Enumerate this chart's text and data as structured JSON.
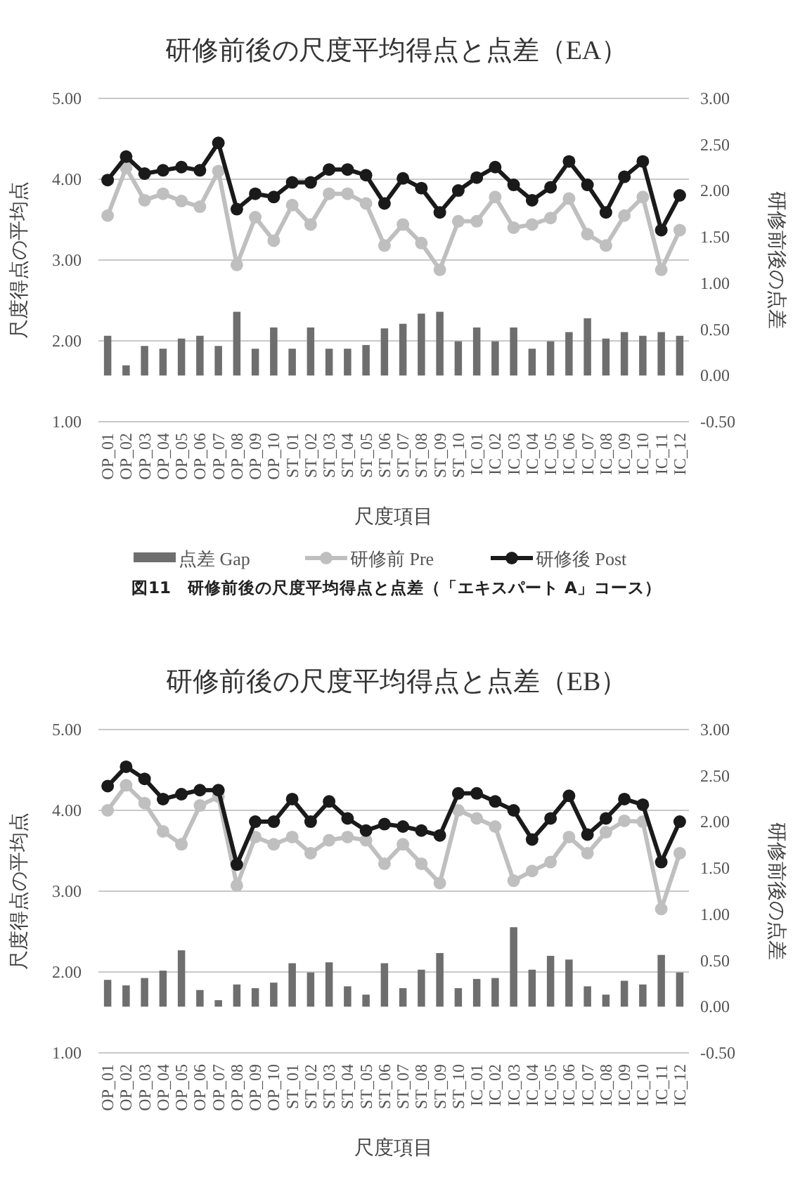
{
  "chart_data": [
    {
      "type": "line",
      "title": "研修前後の尺度平均得点と点差（EA）",
      "xlabel": "尺度項目",
      "ylabel": "尺度得点の平均点",
      "y2label": "研修前後の点差",
      "categories": [
        "OP_01",
        "OP_02",
        "OP_03",
        "OP_04",
        "OP_05",
        "OP_06",
        "OP_07",
        "OP_08",
        "OP_09",
        "OP_10",
        "ST_01",
        "ST_02",
        "ST_03",
        "ST_04",
        "ST_05",
        "ST_06",
        "ST_07",
        "ST_08",
        "ST_09",
        "ST_10",
        "IC_01",
        "IC_02",
        "IC_03",
        "IC_04",
        "IC_05",
        "IC_06",
        "IC_07",
        "IC_08",
        "IC_09",
        "IC_10",
        "IC_11",
        "IC_12"
      ],
      "series": [
        {
          "name": "点差 Gap",
          "type": "bar",
          "axis": "y2",
          "color": "#6e6e6e",
          "values": [
            0.43,
            0.11,
            0.32,
            0.29,
            0.4,
            0.43,
            0.32,
            0.69,
            0.29,
            0.52,
            0.29,
            0.52,
            0.29,
            0.29,
            0.33,
            0.51,
            0.56,
            0.67,
            0.69,
            0.37,
            0.52,
            0.37,
            0.52,
            0.29,
            0.37,
            0.47,
            0.62,
            0.4,
            0.47,
            0.43,
            0.47,
            0.43
          ]
        },
        {
          "name": "研修前 Pre",
          "color": "#bfbfbf",
          "values": [
            3.55,
            4.14,
            3.74,
            3.82,
            3.73,
            3.66,
            4.1,
            2.94,
            3.53,
            3.24,
            3.68,
            3.44,
            3.82,
            3.82,
            3.7,
            3.18,
            3.44,
            3.21,
            2.88,
            3.48,
            3.48,
            3.78,
            3.4,
            3.44,
            3.52,
            3.76,
            3.32,
            3.18,
            3.55,
            3.78,
            2.88,
            3.37
          ]
        },
        {
          "name": "研修後 Post",
          "color": "#1a1a1a",
          "values": [
            3.99,
            4.28,
            4.07,
            4.11,
            4.15,
            4.11,
            4.45,
            3.63,
            3.82,
            3.78,
            3.96,
            3.96,
            4.12,
            4.12,
            4.05,
            3.7,
            4.01,
            3.89,
            3.59,
            3.86,
            4.02,
            4.15,
            3.93,
            3.74,
            3.9,
            4.22,
            3.93,
            3.59,
            4.03,
            4.22,
            3.37,
            3.8
          ]
        }
      ],
      "ylim": [
        1,
        5
      ],
      "yticks": [
        {
          "value": 1,
          "label": "1.00"
        },
        {
          "value": 2,
          "label": "2.00"
        },
        {
          "value": 3,
          "label": "3.00"
        },
        {
          "value": 4,
          "label": "4.00"
        },
        {
          "value": 5,
          "label": "5.00"
        }
      ],
      "y2lim": [
        -0.5,
        3
      ],
      "y2ticks": [
        {
          "value": -0.5,
          "label": "-0.50"
        },
        {
          "value": 0,
          "label": "0.00"
        },
        {
          "value": 0.5,
          "label": "0.50"
        },
        {
          "value": 1,
          "label": "1.00"
        },
        {
          "value": 1.5,
          "label": "1.50"
        },
        {
          "value": 2,
          "label": "2.00"
        },
        {
          "value": 2.5,
          "label": "2.50"
        },
        {
          "value": 3,
          "label": "3.00"
        }
      ],
      "grid": "y",
      "legend": "bottom",
      "marker": "circle",
      "line_style": "solid",
      "annotations": [
        "図11　研修前後の尺度平均得点と点差（「エキスパート A」コース）"
      ]
    },
    {
      "type": "line",
      "title": "研修前後の尺度平均得点と点差（EB）",
      "xlabel": "尺度項目",
      "ylabel": "尺度得点の平均点",
      "y2label": "研修前後の点差",
      "categories": [
        "OP_01",
        "OP_02",
        "OP_03",
        "OP_04",
        "OP_05",
        "OP_06",
        "OP_07",
        "OP_08",
        "OP_09",
        "OP_10",
        "ST_01",
        "ST_02",
        "ST_03",
        "ST_04",
        "ST_05",
        "ST_06",
        "ST_07",
        "ST_08",
        "ST_09",
        "ST_10",
        "IC_01",
        "IC_02",
        "IC_03",
        "IC_04",
        "IC_05",
        "IC_06",
        "IC_07",
        "IC_08",
        "IC_09",
        "IC_10",
        "IC_11",
        "IC_12"
      ],
      "series": [
        {
          "type": "bar",
          "axis": "y2",
          "color": "#6e6e6e",
          "values": [
            0.29,
            0.23,
            0.31,
            0.39,
            0.61,
            0.18,
            0.07,
            0.24,
            0.2,
            0.26,
            0.47,
            0.37,
            0.48,
            0.22,
            0.13,
            0.47,
            0.2,
            0.4,
            0.58,
            0.2,
            0.3,
            0.31,
            0.86,
            0.4,
            0.55,
            0.51,
            0.22,
            0.13,
            0.28,
            0.24,
            0.56,
            0.37
          ]
        },
        {
          "color": "#bfbfbf",
          "values": [
            4.0,
            4.31,
            4.09,
            3.74,
            3.58,
            4.06,
            4.17,
            3.07,
            3.67,
            3.58,
            3.67,
            3.47,
            3.63,
            3.67,
            3.63,
            3.34,
            3.58,
            3.34,
            3.1,
            4.0,
            3.9,
            3.8,
            3.13,
            3.25,
            3.36,
            3.67,
            3.47,
            3.73,
            3.87,
            3.86,
            2.78,
            3.47
          ]
        },
        {
          "color": "#1a1a1a",
          "values": [
            4.3,
            4.54,
            4.39,
            4.14,
            4.2,
            4.25,
            4.25,
            3.33,
            3.86,
            3.86,
            4.14,
            3.86,
            4.11,
            3.9,
            3.75,
            3.83,
            3.8,
            3.75,
            3.69,
            4.21,
            4.21,
            4.11,
            4.0,
            3.64,
            3.9,
            4.18,
            3.7,
            3.9,
            4.14,
            4.07,
            3.36,
            3.86
          ]
        }
      ],
      "ylim": [
        1,
        5
      ],
      "yticks": [
        {
          "value": 1,
          "label": "1.00"
        },
        {
          "value": 2,
          "label": "2.00"
        },
        {
          "value": 3,
          "label": "3.00"
        },
        {
          "value": 4,
          "label": "4.00"
        },
        {
          "value": 5,
          "label": "5.00"
        }
      ],
      "y2lim": [
        -0.5,
        3
      ],
      "y2ticks": [
        {
          "value": -0.5,
          "label": "-0.50"
        },
        {
          "value": 0,
          "label": "0.00"
        },
        {
          "value": 0.5,
          "label": "0.50"
        },
        {
          "value": 1,
          "label": "1.00"
        },
        {
          "value": 1.5,
          "label": "1.50"
        },
        {
          "value": 2,
          "label": "2.00"
        },
        {
          "value": 2.5,
          "label": "2.50"
        },
        {
          "value": 3,
          "label": "3.00"
        }
      ],
      "grid": "y",
      "marker": "circle",
      "line_style": "solid"
    }
  ]
}
